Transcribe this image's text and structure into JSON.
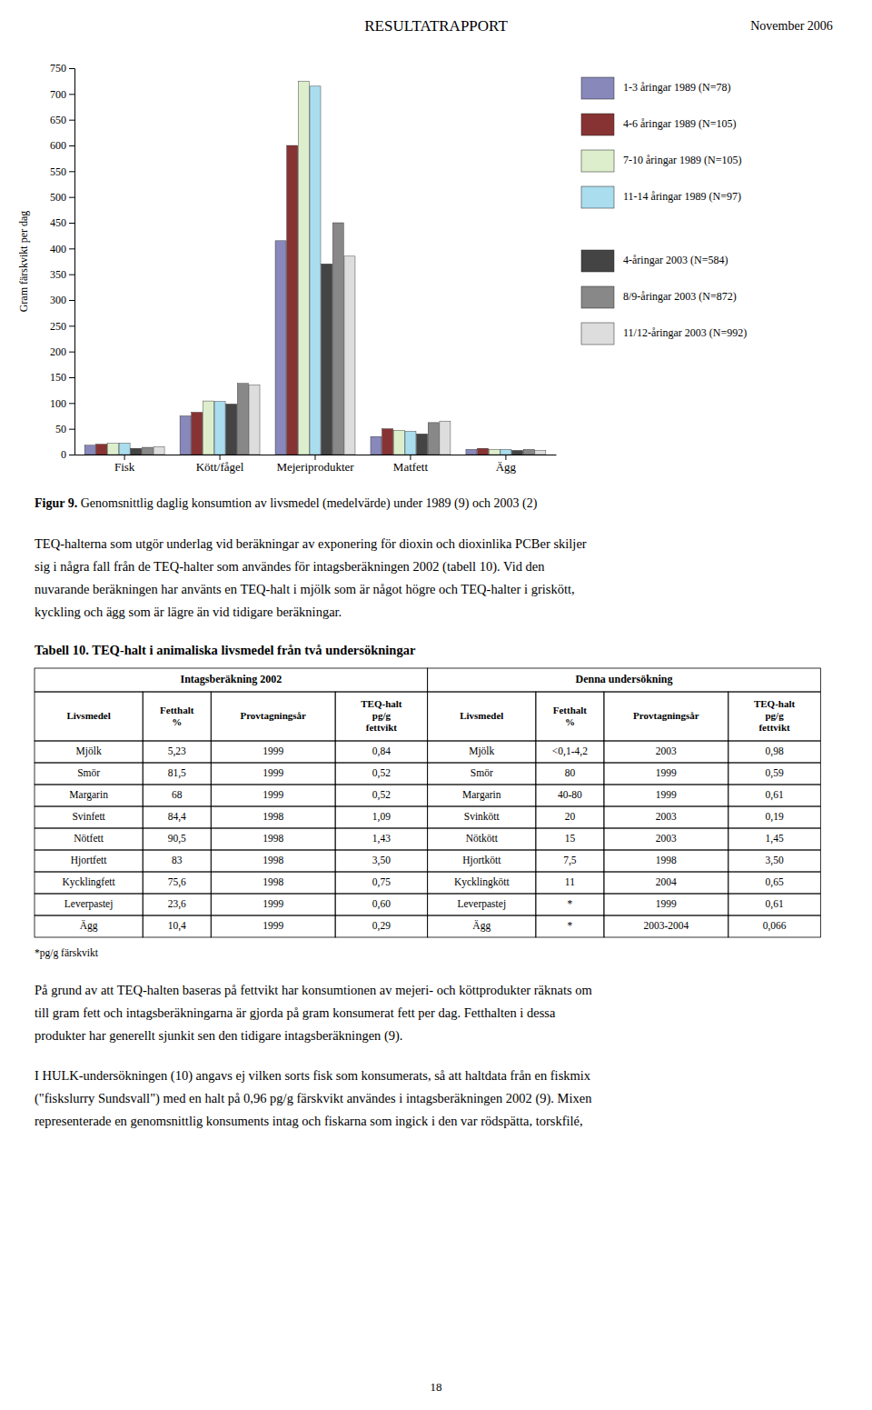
{
  "header": {
    "left": "RESULTATRAPPORT",
    "right": "November 2006"
  },
  "chart_data": {
    "type": "bar",
    "ylabel": "Gram färskvikt per dag",
    "categories": [
      "Fisk",
      "Kött/fågel",
      "Mejeriprodukter",
      "Matfett",
      "Ägg"
    ],
    "series": [
      {
        "name": "1-3 åringar 1989 (N=78)",
        "color": "#8888bb",
        "values": [
          18,
          75,
          415,
          35,
          10
        ]
      },
      {
        "name": "4-6 åringar 1989 (N=105)",
        "color": "#883333",
        "values": [
          20,
          82,
          600,
          50,
          12
        ]
      },
      {
        "name": "7-10 åringar 1989 (N=105)",
        "color": "#ddeecc",
        "values": [
          22,
          104,
          725,
          47,
          10
        ]
      },
      {
        "name": "11-14 åringar 1989 (N=97)",
        "color": "#aaddee",
        "values": [
          22,
          103,
          715,
          45,
          10
        ]
      },
      {
        "name": "4-åringar 2003 (N=584)",
        "color": "#444444",
        "values": [
          12,
          98,
          370,
          40,
          8
        ]
      },
      {
        "name": "8/9-åringar 2003 (N=872)",
        "color": "#888888",
        "values": [
          14,
          138,
          450,
          62,
          10
        ]
      },
      {
        "name": "11/12-åringar 2003 (N=992)",
        "color": "#dddddd",
        "values": [
          15,
          135,
          385,
          65,
          8
        ]
      }
    ],
    "ylim": [
      0,
      750
    ],
    "yticks": [
      0,
      50,
      100,
      150,
      200,
      250,
      300,
      350,
      400,
      450,
      500,
      550,
      600,
      650,
      700,
      750
    ],
    "grid": false,
    "legend": "right"
  },
  "caption": {
    "label": "Figur 9.",
    "text": " Genomsnittlig daglig konsumtion av livsmedel (medelvärde) under 1989 (9) och 2003 (2)"
  },
  "body_text1": [
    "TEQ-halterna som utgör underlag vid beräkningar av exponering för dioxin och dioxinlika PCBer skiljer",
    "sig i några fall från de TEQ-halter som användes för intagsberäkningen 2002 (tabell 10). Vid den",
    "nuvarande beräkningen har använts en TEQ-halt i mjölk som är något högre och TEQ-halter i griskött,",
    "kyckling och ägg som är lägre än vid tidigare beräkningar."
  ],
  "table": {
    "title": "Tabell 10. TEQ-halt i animaliska livsmedel från två undersökningar",
    "group_headers": [
      "Intagsberäkning 2002",
      "Denna undersökning"
    ],
    "col_headers": [
      "Livsmedel",
      "Fetthalt\n%",
      "Provtagningsår",
      "TEQ-halt\npg/g\nfettvikt",
      "Livsmedel",
      "Fetthalt\n%",
      "Provtagningsår",
      "TEQ-halt\npg/g\nfettvikt"
    ],
    "rows": [
      [
        "Mjölk",
        "5,23",
        "1999",
        "0,84",
        "Mjölk",
        "<0,1-4,2",
        "2003",
        "0,98"
      ],
      [
        "Smör",
        "81,5",
        "1999",
        "0,52",
        "Smör",
        "80",
        "1999",
        "0,59"
      ],
      [
        "Margarin",
        "68",
        "1999",
        "0,52",
        "Margarin",
        "40-80",
        "1999",
        "0,61"
      ],
      [
        "Svinfett",
        "84,4",
        "1998",
        "1,09",
        "Svinkött",
        "20",
        "2003",
        "0,19"
      ],
      [
        "Nötfett",
        "90,5",
        "1998",
        "1,43",
        "Nötkött",
        "15",
        "2003",
        "1,45"
      ],
      [
        "Hjortfett",
        "83",
        "1998",
        "3,50",
        "Hjortkött",
        "7,5",
        "1998",
        "3,50"
      ],
      [
        "Kycklingfett",
        "75,6",
        "1998",
        "0,75",
        "Kycklingkött",
        "11",
        "2004",
        "0,65"
      ],
      [
        "Leverpastej",
        "23,6",
        "1999",
        "0,60",
        "Leverpastej",
        "*",
        "1999",
        "0,61"
      ],
      [
        "Ägg",
        "10,4",
        "1999",
        "0,29",
        "Ägg",
        "*",
        "2003-2004",
        "0,066"
      ]
    ],
    "footnote": "*pg/g färskvikt"
  },
  "body_text2": [
    "På grund av att TEQ-halten baseras på fettvikt har konsumtionen av mejeri- och köttprodukter räknats om",
    "till gram fett och intagsberäkningarna är gjorda på gram konsumerat fett per dag. Fetthalten i dessa",
    "produkter har generellt sjunkit sen den tidigare intagsberäkningen (9)."
  ],
  "body_text3": [
    "I HULK-undersökningen (10) angavs ej vilken sorts fisk som konsumerats, så att haltdata från en fiskmix",
    "(\"fiskslurry Sundsvall\") med en halt på 0,96 pg/g färskvikt användes i intagsberäkningen 2002 (9). Mixen",
    "representerade en genomsnittlig konsuments intag och fiskarna som ingick i den var rödspätta, torskfilé,"
  ],
  "page_number": "18"
}
